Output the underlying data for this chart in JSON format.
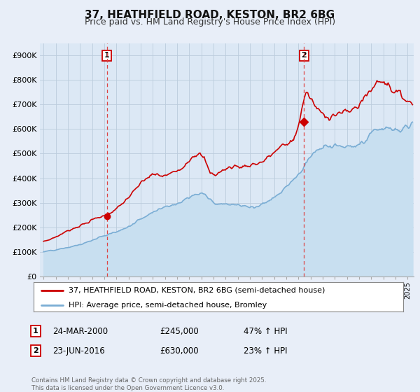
{
  "title": "37, HEATHFIELD ROAD, KESTON, BR2 6BG",
  "subtitle": "Price paid vs. HM Land Registry's House Price Index (HPI)",
  "ylabel_ticks": [
    "£0",
    "£100K",
    "£200K",
    "£300K",
    "£400K",
    "£500K",
    "£600K",
    "£700K",
    "£800K",
    "£900K"
  ],
  "ylim": [
    0,
    950000
  ],
  "xlim_start": 1994.7,
  "xlim_end": 2025.5,
  "sale1_year": 2000.22,
  "sale1_price": 245000,
  "sale1_label": "1",
  "sale2_year": 2016.47,
  "sale2_price": 630000,
  "sale2_label": "2",
  "legend_line1": "37, HEATHFIELD ROAD, KESTON, BR2 6BG (semi-detached house)",
  "legend_line2": "HPI: Average price, semi-detached house, Bromley",
  "annotation1_date": "24-MAR-2000",
  "annotation1_price": "£245,000",
  "annotation1_hpi": "47% ↑ HPI",
  "annotation2_date": "23-JUN-2016",
  "annotation2_price": "£630,000",
  "annotation2_hpi": "23% ↑ HPI",
  "footnote": "Contains HM Land Registry data © Crown copyright and database right 2025.\nThis data is licensed under the Open Government Licence v3.0.",
  "line_color_red": "#cc0000",
  "line_color_blue": "#7aadd4",
  "fill_color_blue": "#c8dff0",
  "background_color": "#e8eef8",
  "plot_bg_color": "#dce8f5",
  "grid_color": "#bbccdd",
  "sale_marker_color": "#cc0000"
}
